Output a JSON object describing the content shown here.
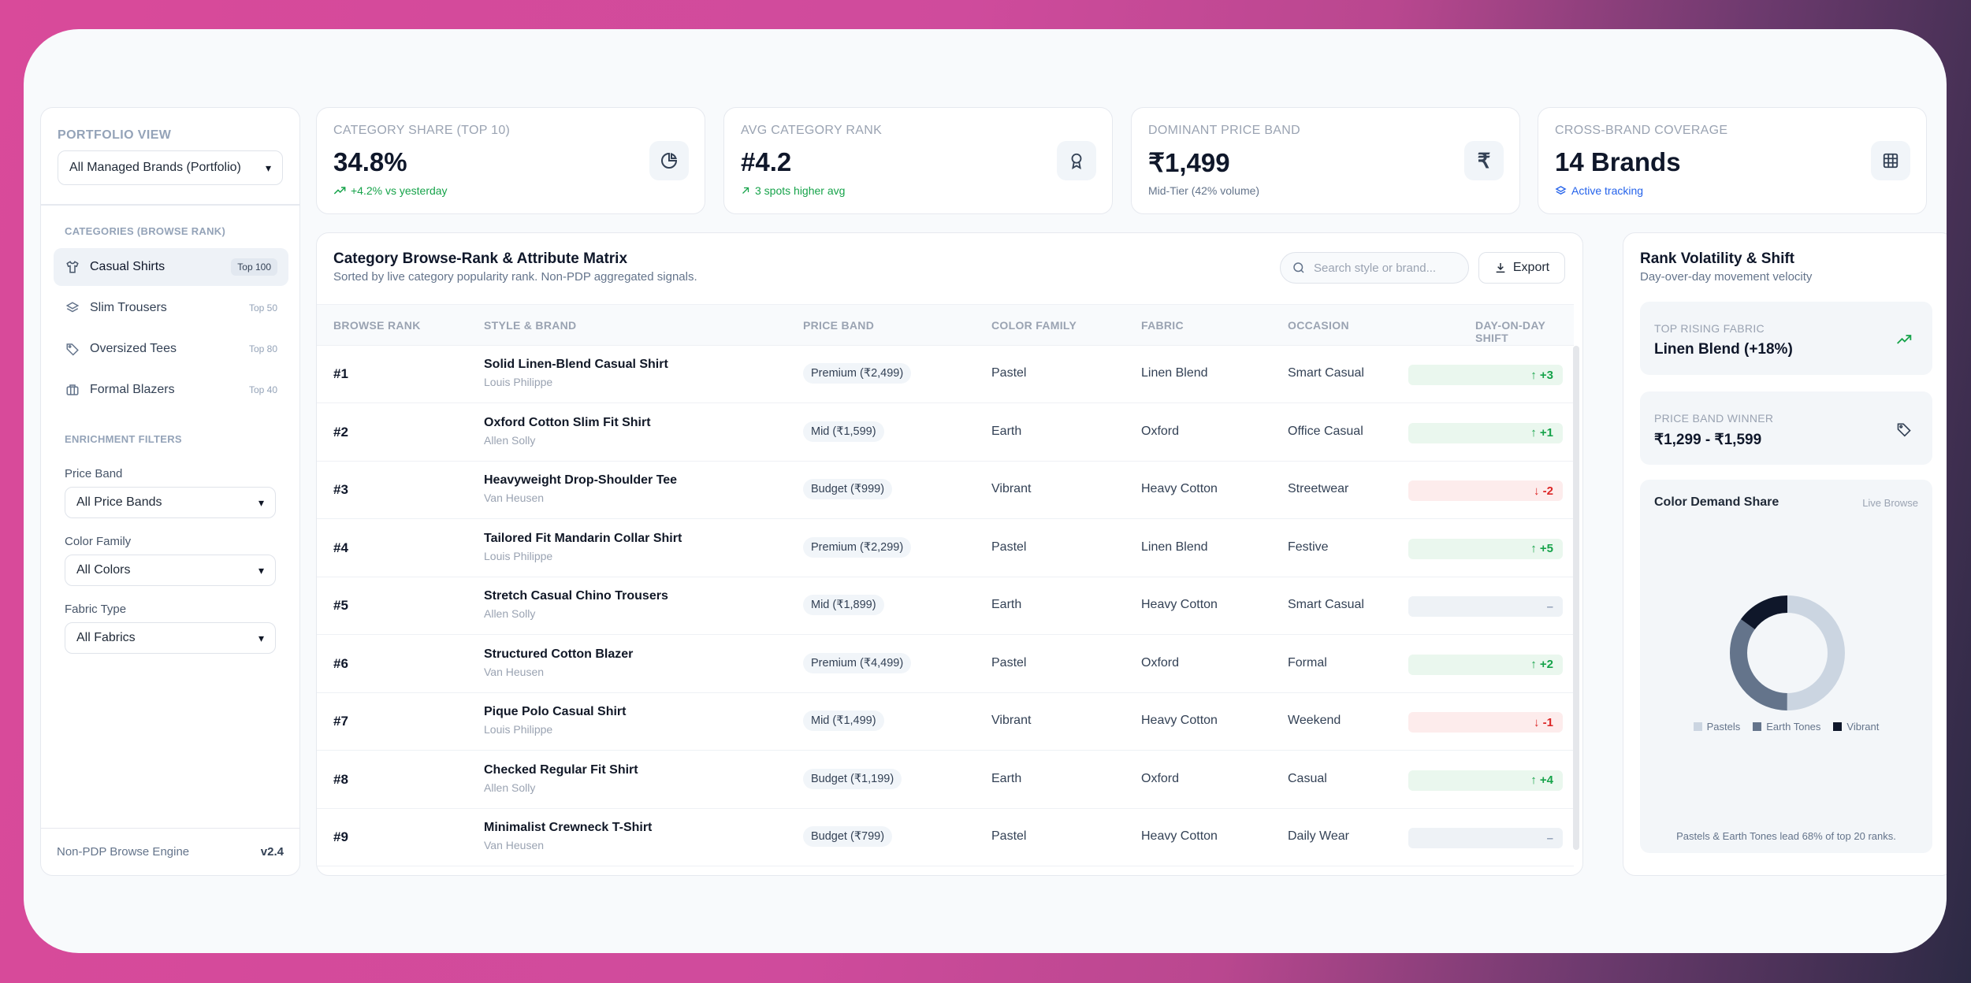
{
  "sidebar": {
    "title": "PORTFOLIO VIEW",
    "portfolio_select": "All Managed Brands (Portfolio)",
    "categories_heading": "CATEGORIES (BROWSE RANK)",
    "categories": [
      {
        "label": "Casual Shirts",
        "badge": "Top 100",
        "icon": "shirt-icon"
      },
      {
        "label": "Slim Trousers",
        "badge": "Top 50",
        "icon": "layers-icon"
      },
      {
        "label": "Oversized Tees",
        "badge": "Top 80",
        "icon": "tag-icon"
      },
      {
        "label": "Formal Blazers",
        "badge": "Top 40",
        "icon": "briefcase-icon"
      }
    ],
    "filters_heading": "ENRICHMENT FILTERS",
    "filters": [
      {
        "label": "Price Band",
        "value": "All Price Bands"
      },
      {
        "label": "Color Family",
        "value": "All Colors"
      },
      {
        "label": "Fabric Type",
        "value": "All Fabrics"
      }
    ],
    "footer_left": "Non-PDP Browse Engine",
    "footer_right": "v2.4"
  },
  "kpis": [
    {
      "label": "CATEGORY SHARE (TOP 10)",
      "value": "34.8%",
      "sub": "+4.2% vs yesterday",
      "icon": "pie-chart-icon"
    },
    {
      "label": "AVG CATEGORY RANK",
      "value": "#4.2",
      "sub": "3 spots higher avg",
      "icon": "award-icon"
    },
    {
      "label": "DOMINANT PRICE BAND",
      "value": "₹1,499",
      "sub": "Mid-Tier (42% volume)",
      "icon": "rupee-icon"
    },
    {
      "label": "CROSS-BRAND COVERAGE",
      "value": "14 Brands",
      "sub": "Active tracking",
      "icon": "grid-icon"
    }
  ],
  "matrix": {
    "title": "Category Browse-Rank & Attribute Matrix",
    "subtitle": "Sorted by live category popularity rank. Non-PDP aggregated signals.",
    "search_placeholder": "Search style or brand...",
    "export_label": "Export",
    "columns": [
      "BROWSE RANK",
      "STYLE & BRAND",
      "PRICE BAND",
      "COLOR FAMILY",
      "FABRIC",
      "OCCASION",
      "DAY-ON-DAY SHIFT"
    ],
    "rows": [
      {
        "rank": "#1",
        "style": "Solid Linen-Blend Casual Shirt",
        "brand": "Louis Philippe",
        "price": "Premium (₹2,499)",
        "color": "Pastel",
        "fabric": "Linen Blend",
        "occasion": "Smart Casual",
        "shift": "↑ +3",
        "dir": "up"
      },
      {
        "rank": "#2",
        "style": "Oxford Cotton Slim Fit Shirt",
        "brand": "Allen Solly",
        "price": "Mid (₹1,599)",
        "color": "Earth",
        "fabric": "Oxford",
        "occasion": "Office Casual",
        "shift": "↑ +1",
        "dir": "up"
      },
      {
        "rank": "#3",
        "style": "Heavyweight Drop-Shoulder Tee",
        "brand": "Van Heusen",
        "price": "Budget (₹999)",
        "color": "Vibrant",
        "fabric": "Heavy Cotton",
        "occasion": "Streetwear",
        "shift": "↓ -2",
        "dir": "down"
      },
      {
        "rank": "#4",
        "style": "Tailored Fit Mandarin Collar Shirt",
        "brand": "Louis Philippe",
        "price": "Premium (₹2,299)",
        "color": "Pastel",
        "fabric": "Linen Blend",
        "occasion": "Festive",
        "shift": "↑ +5",
        "dir": "up"
      },
      {
        "rank": "#5",
        "style": "Stretch Casual Chino Trousers",
        "brand": "Allen Solly",
        "price": "Mid (₹1,899)",
        "color": "Earth",
        "fabric": "Heavy Cotton",
        "occasion": "Smart Casual",
        "shift": "–",
        "dir": "flat"
      },
      {
        "rank": "#6",
        "style": "Structured Cotton Blazer",
        "brand": "Van Heusen",
        "price": "Premium (₹4,499)",
        "color": "Pastel",
        "fabric": "Oxford",
        "occasion": "Formal",
        "shift": "↑ +2",
        "dir": "up"
      },
      {
        "rank": "#7",
        "style": "Pique Polo Casual Shirt",
        "brand": "Louis Philippe",
        "price": "Mid (₹1,499)",
        "color": "Vibrant",
        "fabric": "Heavy Cotton",
        "occasion": "Weekend",
        "shift": "↓ -1",
        "dir": "down"
      },
      {
        "rank": "#8",
        "style": "Checked Regular Fit Shirt",
        "brand": "Allen Solly",
        "price": "Budget (₹1,199)",
        "color": "Earth",
        "fabric": "Oxford",
        "occasion": "Casual",
        "shift": "↑ +4",
        "dir": "up"
      },
      {
        "rank": "#9",
        "style": "Minimalist Crewneck T-Shirt",
        "brand": "Van Heusen",
        "price": "Budget (₹799)",
        "color": "Pastel",
        "fabric": "Heavy Cotton",
        "occasion": "Daily Wear",
        "shift": "–",
        "dir": "flat"
      }
    ]
  },
  "volatility": {
    "title": "Rank Volatility & Shift",
    "subtitle": "Day-over-day movement velocity",
    "top_fabric_label": "TOP RISING FABRIC",
    "top_fabric_value": "Linen Blend (+18%)",
    "price_winner_label": "PRICE BAND WINNER",
    "price_winner_value": "₹1,299 - ₹1,599",
    "color_share_title": "Color Demand Share",
    "color_share_tag": "Live Browse",
    "legend": [
      {
        "name": "Pastels",
        "color": "#cbd5e1"
      },
      {
        "name": "Earth Tones",
        "color": "#64748b"
      },
      {
        "name": "Vibrant",
        "color": "#0f172a"
      }
    ],
    "note": "Pastels & Earth Tones lead 68% of top 20 ranks."
  }
}
